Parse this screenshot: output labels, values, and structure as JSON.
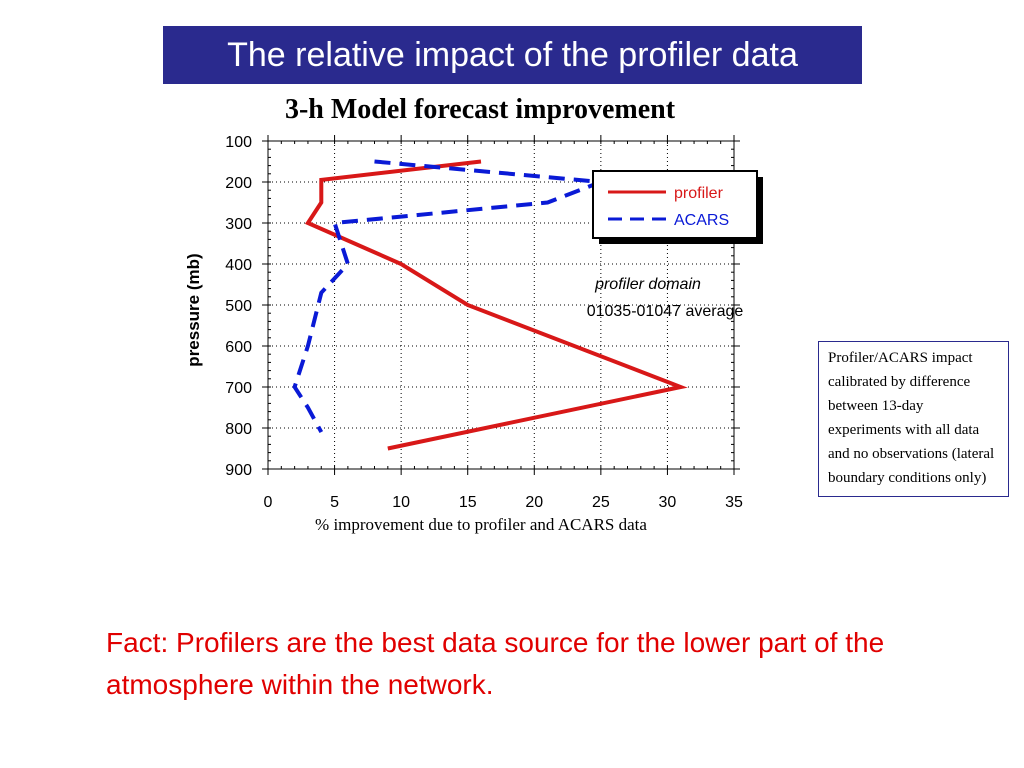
{
  "slide": {
    "title": "The relative impact of the profiler data",
    "fact_text": "Fact:  Profilers are the best data source for the lower part of the atmosphere within the network.",
    "note_text": "Profiler/ACARS impact calibrated by difference between 13-day experiments with all data and no observations (lateral boundary conditions only)"
  },
  "chart_data": {
    "type": "line",
    "title": "3-h Model forecast improvement",
    "xlabel": "% improvement due to profiler and ACARS data",
    "ylabel": "pressure (mb)",
    "xlim": [
      0,
      35
    ],
    "ylim": [
      100,
      900
    ],
    "y_inverted": true,
    "x_ticks": [
      "0",
      "5",
      "10",
      "15",
      "20",
      "25",
      "30",
      "35"
    ],
    "y_ticks": [
      "100",
      "200",
      "300",
      "400",
      "500",
      "600",
      "700",
      "800",
      "900"
    ],
    "legend_position": "top-right",
    "annotation_line1": "profiler domain",
    "annotation_line2": "01035-01047 average",
    "series": [
      {
        "name": "profiler",
        "color": "#d81818",
        "style": "solid",
        "points": [
          [
            16,
            150
          ],
          [
            4,
            195
          ],
          [
            4,
            250
          ],
          [
            3,
            300
          ],
          [
            10,
            400
          ],
          [
            15,
            500
          ],
          [
            31,
            700
          ],
          [
            9,
            850
          ]
        ]
      },
      {
        "name": "ACARS",
        "color": "#0a1ad6",
        "style": "dashed",
        "points": [
          [
            8,
            150
          ],
          [
            25,
            200
          ],
          [
            21,
            250
          ],
          [
            5,
            300
          ],
          [
            6,
            400
          ],
          [
            4,
            470
          ],
          [
            3,
            600
          ],
          [
            2,
            700
          ],
          [
            3,
            750
          ],
          [
            4,
            810
          ]
        ]
      }
    ]
  }
}
